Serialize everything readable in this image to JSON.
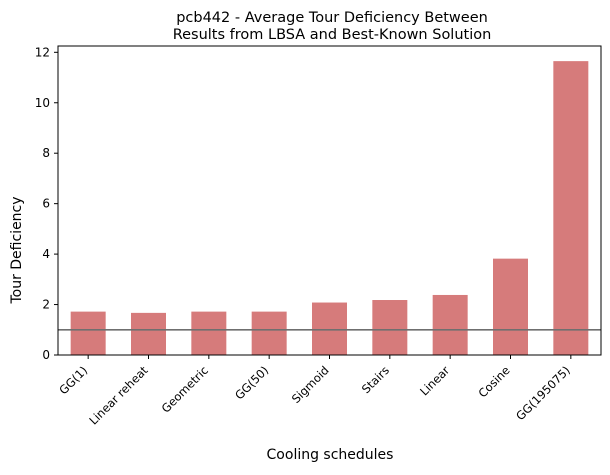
{
  "chart_data": {
    "type": "bar",
    "title_lines": [
      "pcb442 - Average Tour Deficiency Between",
      "Results from LBSA and Best-Known Solution"
    ],
    "xlabel": "Cooling schedules",
    "ylabel": "Tour Deficiency",
    "categories": [
      "GG(1)",
      "Linear reheat",
      "Geometric",
      "GG(50)",
      "Sigmoid",
      "Stairs",
      "Linear",
      "Cosine",
      "GG(195075)"
    ],
    "values": [
      1.72,
      1.67,
      1.72,
      1.72,
      2.08,
      2.18,
      2.38,
      3.82,
      11.65
    ],
    "y_ticks": [
      0,
      2,
      4,
      6,
      8,
      10,
      12
    ],
    "ylim": [
      0,
      12.25
    ],
    "reference_line": 1.0,
    "grid": false,
    "colors": {
      "bar": "#d67b7b",
      "reference_line": "#6f6f6f",
      "axis": "#000000"
    }
  }
}
